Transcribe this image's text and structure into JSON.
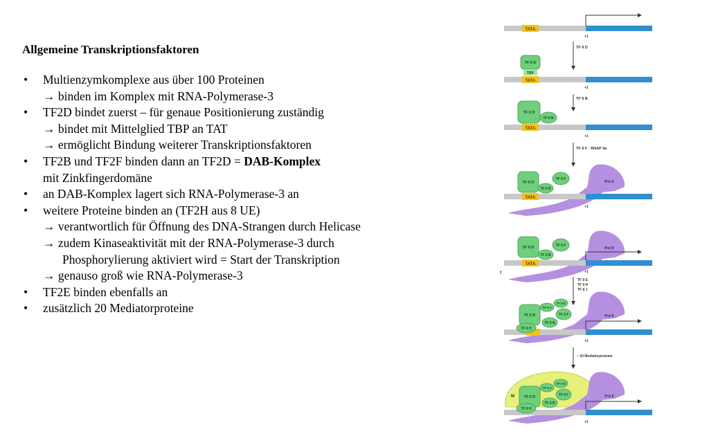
{
  "heading": "Allgemeine Transkriptionsfaktoren",
  "bullet_symbol": "•",
  "arrow_symbol": "→",
  "bullets": [
    {
      "text": "Multienzymkomplexe aus über 100 Proteinen",
      "subs": [
        "binden im Komplex mit RNA-Polymerase-3"
      ]
    },
    {
      "text": "TF2D bindet zuerst – für genaue Positionierung zuständig",
      "subs": [
        "bindet mit Mittelglied TBP an TAT",
        "ermöglicht Bindung weiterer Transkriptionsfaktoren"
      ]
    },
    {
      "text_pre": "TF2B und TF2F binden dann an TF2D = ",
      "text_bold": "DAB-Komplex",
      "text_cont": "mit Zinkfingerdomäne"
    },
    {
      "text": "an DAB-Komplex lagert sich RNA-Polymerase-3 an"
    },
    {
      "text": "weitere Proteine binden an (TF2H aus 8 UE)",
      "subs": [
        "verantwortlich für Öffnung des DNA-Strangen durch Helicase",
        "zudem Kinaseaktivität mit der RNA-Polymerase-3 durch",
        "genauso groß wie RNA-Polymerase-3"
      ],
      "sub_cont": "Phosphorylierung aktiviert wird = Start der Transkription"
    },
    {
      "text": "TF2E binden ebenfalls an"
    },
    {
      "text": "zusätzlich 20 Mediatorproteine"
    }
  ],
  "figure": {
    "tata": "TATA",
    "plus1": "+1",
    "tfiid": "TF II D",
    "tbp": "TBP",
    "tfiib": "TF II B",
    "tfiif": "TF II F",
    "tfiie": "TF II E",
    "tfiih": "TF II H",
    "tfiij": "TF II J",
    "pol": "Pol II",
    "m": "M",
    "step1": "TF II D",
    "step2": "TF II B",
    "step3": "TF II F · RNAP IIa",
    "step4a": "TF II E",
    "step4b": "TF II H",
    "step4c": "TF II J",
    "step5": "~ 20 Mediatorproteine",
    "margin_mark": "t",
    "colors": {
      "dna_gray": "#c8c8c8",
      "dna_blue": "#2f8fd0",
      "tata": "#f3c21a",
      "tf_green": "#6fcf7c",
      "pol_purple": "#b690e0",
      "mediator": "#e6f07a"
    }
  }
}
